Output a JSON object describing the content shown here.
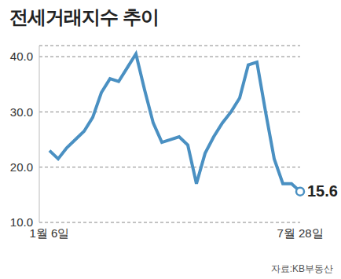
{
  "chart_data": {
    "type": "line",
    "title": "전세거래지수 추이",
    "source": "자료:KB부동산",
    "categories": [
      "1월 6일",
      null,
      null,
      null,
      null,
      null,
      null,
      null,
      null,
      null,
      null,
      null,
      null,
      null,
      null,
      null,
      null,
      null,
      null,
      null,
      null,
      null,
      null,
      null,
      null,
      null,
      null,
      null,
      null,
      "7월 28일"
    ],
    "values": [
      23,
      21.5,
      23.5,
      25,
      26.5,
      29,
      33.5,
      36,
      35.5,
      38,
      40.5,
      34,
      28,
      24.5,
      25,
      25.5,
      24,
      17,
      22.5,
      25.5,
      28,
      30,
      32.5,
      38.5,
      39,
      30,
      21.5,
      17,
      17,
      15.6
    ],
    "value_labels": [
      null,
      null,
      null,
      null,
      null,
      null,
      null,
      null,
      null,
      null,
      null,
      null,
      null,
      null,
      null,
      null,
      null,
      null,
      null,
      null,
      null,
      null,
      null,
      null,
      null,
      null,
      null,
      null,
      null,
      "15.6"
    ],
    "data_labels": true,
    "marker": "circle",
    "color": "#4a90c2",
    "ylim": [
      10,
      42
    ],
    "yticks": [
      {
        "value": 10,
        "label": "10.0"
      },
      {
        "value": 20,
        "label": "20.0"
      },
      {
        "value": 30,
        "label": "30.0"
      },
      {
        "value": 40,
        "label": "40.0"
      }
    ],
    "grid": true
  }
}
